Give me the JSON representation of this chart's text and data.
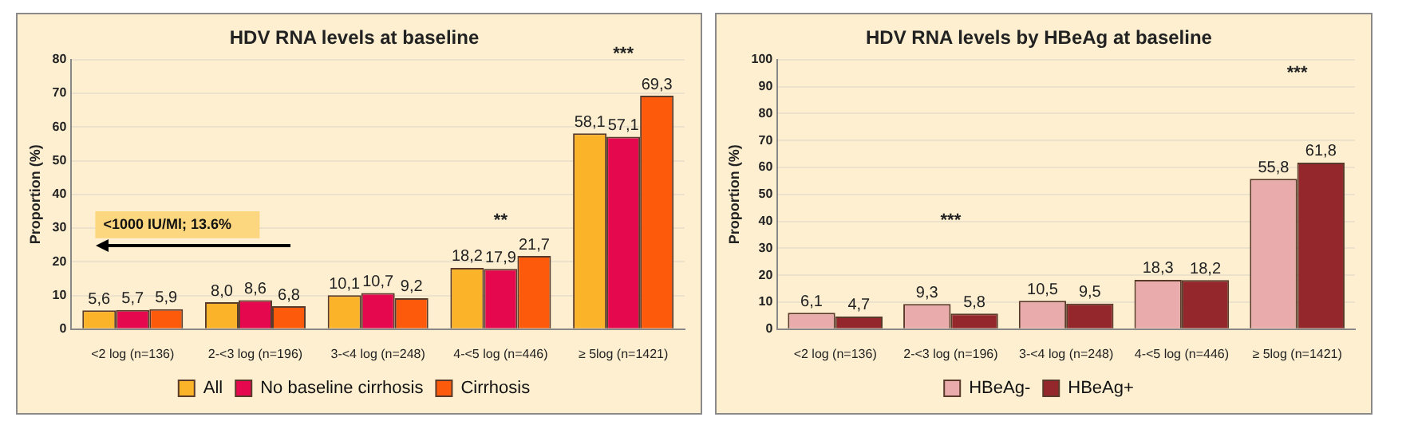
{
  "chart_data": [
    {
      "type": "bar",
      "title": "HDV RNA levels at baseline",
      "ylabel": "Proportion (%)",
      "categories": [
        "<2 log (n=136)",
        "2-<3 log (n=196)",
        "3-<4 log (n=248)",
        "4-<5 log (n=446)",
        "≥ 5log (n=1421)"
      ],
      "series": [
        {
          "name": "All",
          "color": "#fbb32a",
          "values": [
            5.6,
            8.0,
            10.1,
            18.2,
            58.1
          ],
          "value_labels": [
            "5,6",
            "8,0",
            "10,1",
            "18,2",
            "58,1"
          ]
        },
        {
          "name": "No baseline cirrhosis",
          "color": "#e6084f",
          "values": [
            5.7,
            8.6,
            10.7,
            17.9,
            57.1
          ],
          "value_labels": [
            "5,7",
            "8,6",
            "10,7",
            "17,9",
            "57,1"
          ]
        },
        {
          "name": "Cirrhosis",
          "color": "#fd5a0c",
          "values": [
            5.9,
            6.8,
            9.2,
            21.7,
            69.3
          ],
          "value_labels": [
            "5,9",
            "6,8",
            "9,2",
            "21,7",
            "69,3"
          ]
        }
      ],
      "ylim": [
        0,
        80
      ],
      "yticks": [
        0,
        10,
        20,
        30,
        40,
        50,
        60,
        70,
        80
      ],
      "grid": "y",
      "legend": "bottom",
      "annotations": [
        "**",
        "***",
        "<1000 IU/Ml; 13.6%"
      ]
    },
    {
      "type": "bar",
      "title": "HDV RNA levels by HBeAg at baseline",
      "ylabel": "Proportion (%)",
      "categories": [
        "<2 log (n=136)",
        "2-<3 log (n=196)",
        "3-<4 log (n=248)",
        "4-<5 log (n=446)",
        "≥ 5log (n=1421)"
      ],
      "series": [
        {
          "name": "HBeAg-",
          "color": "#e9abab",
          "values": [
            6.1,
            9.3,
            10.5,
            18.3,
            55.8
          ],
          "value_labels": [
            "6,1",
            "9,3",
            "10,5",
            "18,3",
            "55,8"
          ]
        },
        {
          "name": "HBeAg+",
          "color": "#93272b",
          "values": [
            4.7,
            5.8,
            9.5,
            18.2,
            61.8
          ],
          "value_labels": [
            "4,7",
            "5,8",
            "9,5",
            "18,2",
            "61,8"
          ]
        }
      ],
      "ylim": [
        0,
        100
      ],
      "yticks": [
        0,
        10,
        20,
        30,
        40,
        50,
        60,
        70,
        80,
        90,
        100
      ],
      "grid": "y",
      "legend": "bottom",
      "annotations": [
        "***",
        "***"
      ]
    }
  ]
}
